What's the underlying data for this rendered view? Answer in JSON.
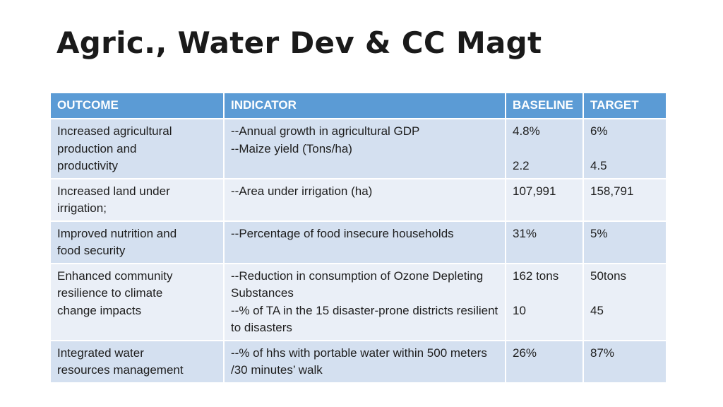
{
  "slide": {
    "title": "Agric., Water Dev & CC Magt"
  },
  "table": {
    "headers": [
      "OUTCOME",
      "INDICATOR",
      "BASELINE",
      "TARGET"
    ],
    "rows": [
      {
        "outcome": "Increased agricultural\nproduction and\nproductivity",
        "indicator": [
          "--Annual growth in agricultural GDP",
          "--Maize yield  (Tons/ha)"
        ],
        "baseline": [
          "4.8%",
          "2.2"
        ],
        "target": [
          "6%",
          "4.5"
        ]
      },
      {
        "outcome": "Increased land under\nirrigation;",
        "indicator": [
          "--Area under irrigation  (ha)"
        ],
        "baseline": [
          "107,991"
        ],
        "target": [
          "158,791"
        ]
      },
      {
        "outcome": "Improved nutrition and\nfood security",
        "indicator": [
          "--Percentage of food insecure  households"
        ],
        "baseline": [
          "31%"
        ],
        "target": [
          "5%"
        ]
      },
      {
        "outcome": "Enhanced community\nresilience to climate\nchange impacts",
        "indicator": [
          "--Reduction in consumption of Ozone Depleting Substances",
          "--% of TA  in the 15 disaster-prone districts resilient to disasters"
        ],
        "baseline": [
          "162 tons",
          "10"
        ],
        "target": [
          "50tons",
          "45"
        ]
      },
      {
        "outcome": "Integrated water\nresources management",
        "indicator": [
          "--% of hhs with portable water within 500 meters /30 minutes’ walk"
        ],
        "baseline": [
          "26%"
        ],
        "target": [
          "87%"
        ]
      }
    ]
  }
}
